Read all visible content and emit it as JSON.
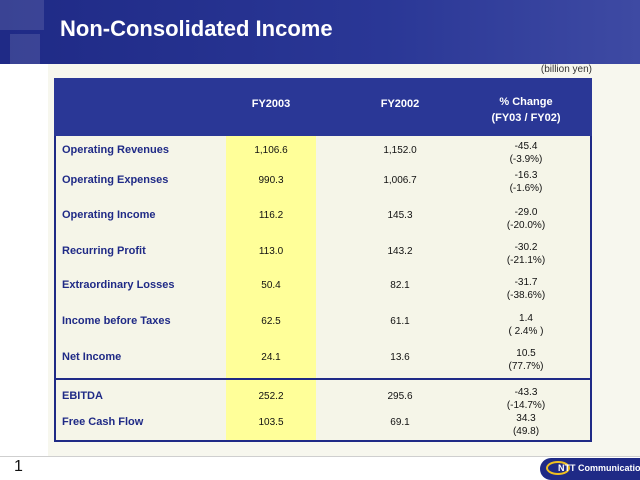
{
  "header": {
    "title": "Non-Consolidated Income"
  },
  "unit": "(billion yen)",
  "table": {
    "col_fy03": "FY2003",
    "col_fy02": "FY2002",
    "col_change_line1": "% Change",
    "col_change_line2": "(FY03 / FY02)",
    "rows": [
      {
        "label": "Operating Revenues",
        "fy03": "1,106.6",
        "fy02": "1,152.0",
        "chg": "-45.4",
        "pct": "(-3.9%)"
      },
      {
        "label": "Operating Expenses",
        "fy03": "990.3",
        "fy02": "1,006.7",
        "chg": "-16.3",
        "pct": "(-1.6%)"
      },
      {
        "label": "Operating Income",
        "fy03": "116.2",
        "fy02": "145.3",
        "chg": "-29.0",
        "pct": "(-20.0%)"
      },
      {
        "label": "Recurring Profit",
        "fy03": "113.0",
        "fy02": "143.2",
        "chg": "-30.2",
        "pct": "(-21.1%)"
      },
      {
        "label": "Extraordinary Losses",
        "fy03": "50.4",
        "fy02": "82.1",
        "chg": "-31.7",
        "pct": "(-38.6%)"
      },
      {
        "label": "Income before Taxes",
        "fy03": "62.5",
        "fy02": "61.1",
        "chg": "1.4",
        "pct": "( 2.4% )"
      },
      {
        "label": "Net Income",
        "fy03": "24.1",
        "fy02": "13.6",
        "chg": "10.5",
        "pct": "(77.7%)"
      },
      {
        "label": "EBITDA",
        "fy03": "252.2",
        "fy02": "295.6",
        "chg": "-43.3",
        "pct": "(-14.7%)"
      },
      {
        "label": "Free Cash Flow",
        "fy03": "103.5",
        "fy02": "69.1",
        "chg": "34.3",
        "pct": "(49.8)"
      }
    ]
  },
  "footer": {
    "page": "1",
    "logo_text": "NTT Communications"
  }
}
